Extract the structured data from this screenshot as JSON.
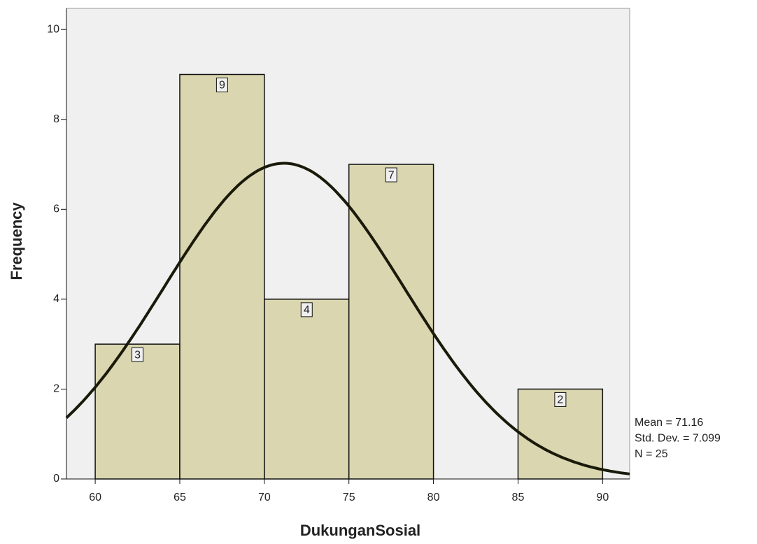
{
  "chart_data": {
    "type": "histogram",
    "x_label": "DukunganSosial",
    "y_label": "Frequency",
    "bins": [
      60,
      65,
      70,
      75,
      80,
      85,
      90
    ],
    "counts": [
      3,
      9,
      4,
      7,
      0,
      2
    ],
    "color": "#d6d1a4",
    "curve_color": "#1a1a0a",
    "xlim": [
      58.3,
      91.6
    ],
    "ylim": [
      0,
      10.47
    ],
    "xticks": [
      60,
      65,
      70,
      75,
      80,
      85,
      90
    ],
    "yticks": [
      0,
      2,
      4,
      6,
      8,
      10
    ],
    "stats": [
      {
        "value": 71.16,
        "label": "Mean = 71.16"
      },
      {
        "value": 7.099,
        "label": "Std. Dev. = 7.099"
      },
      {
        "value": 25,
        "label": "N = 25"
      }
    ]
  }
}
